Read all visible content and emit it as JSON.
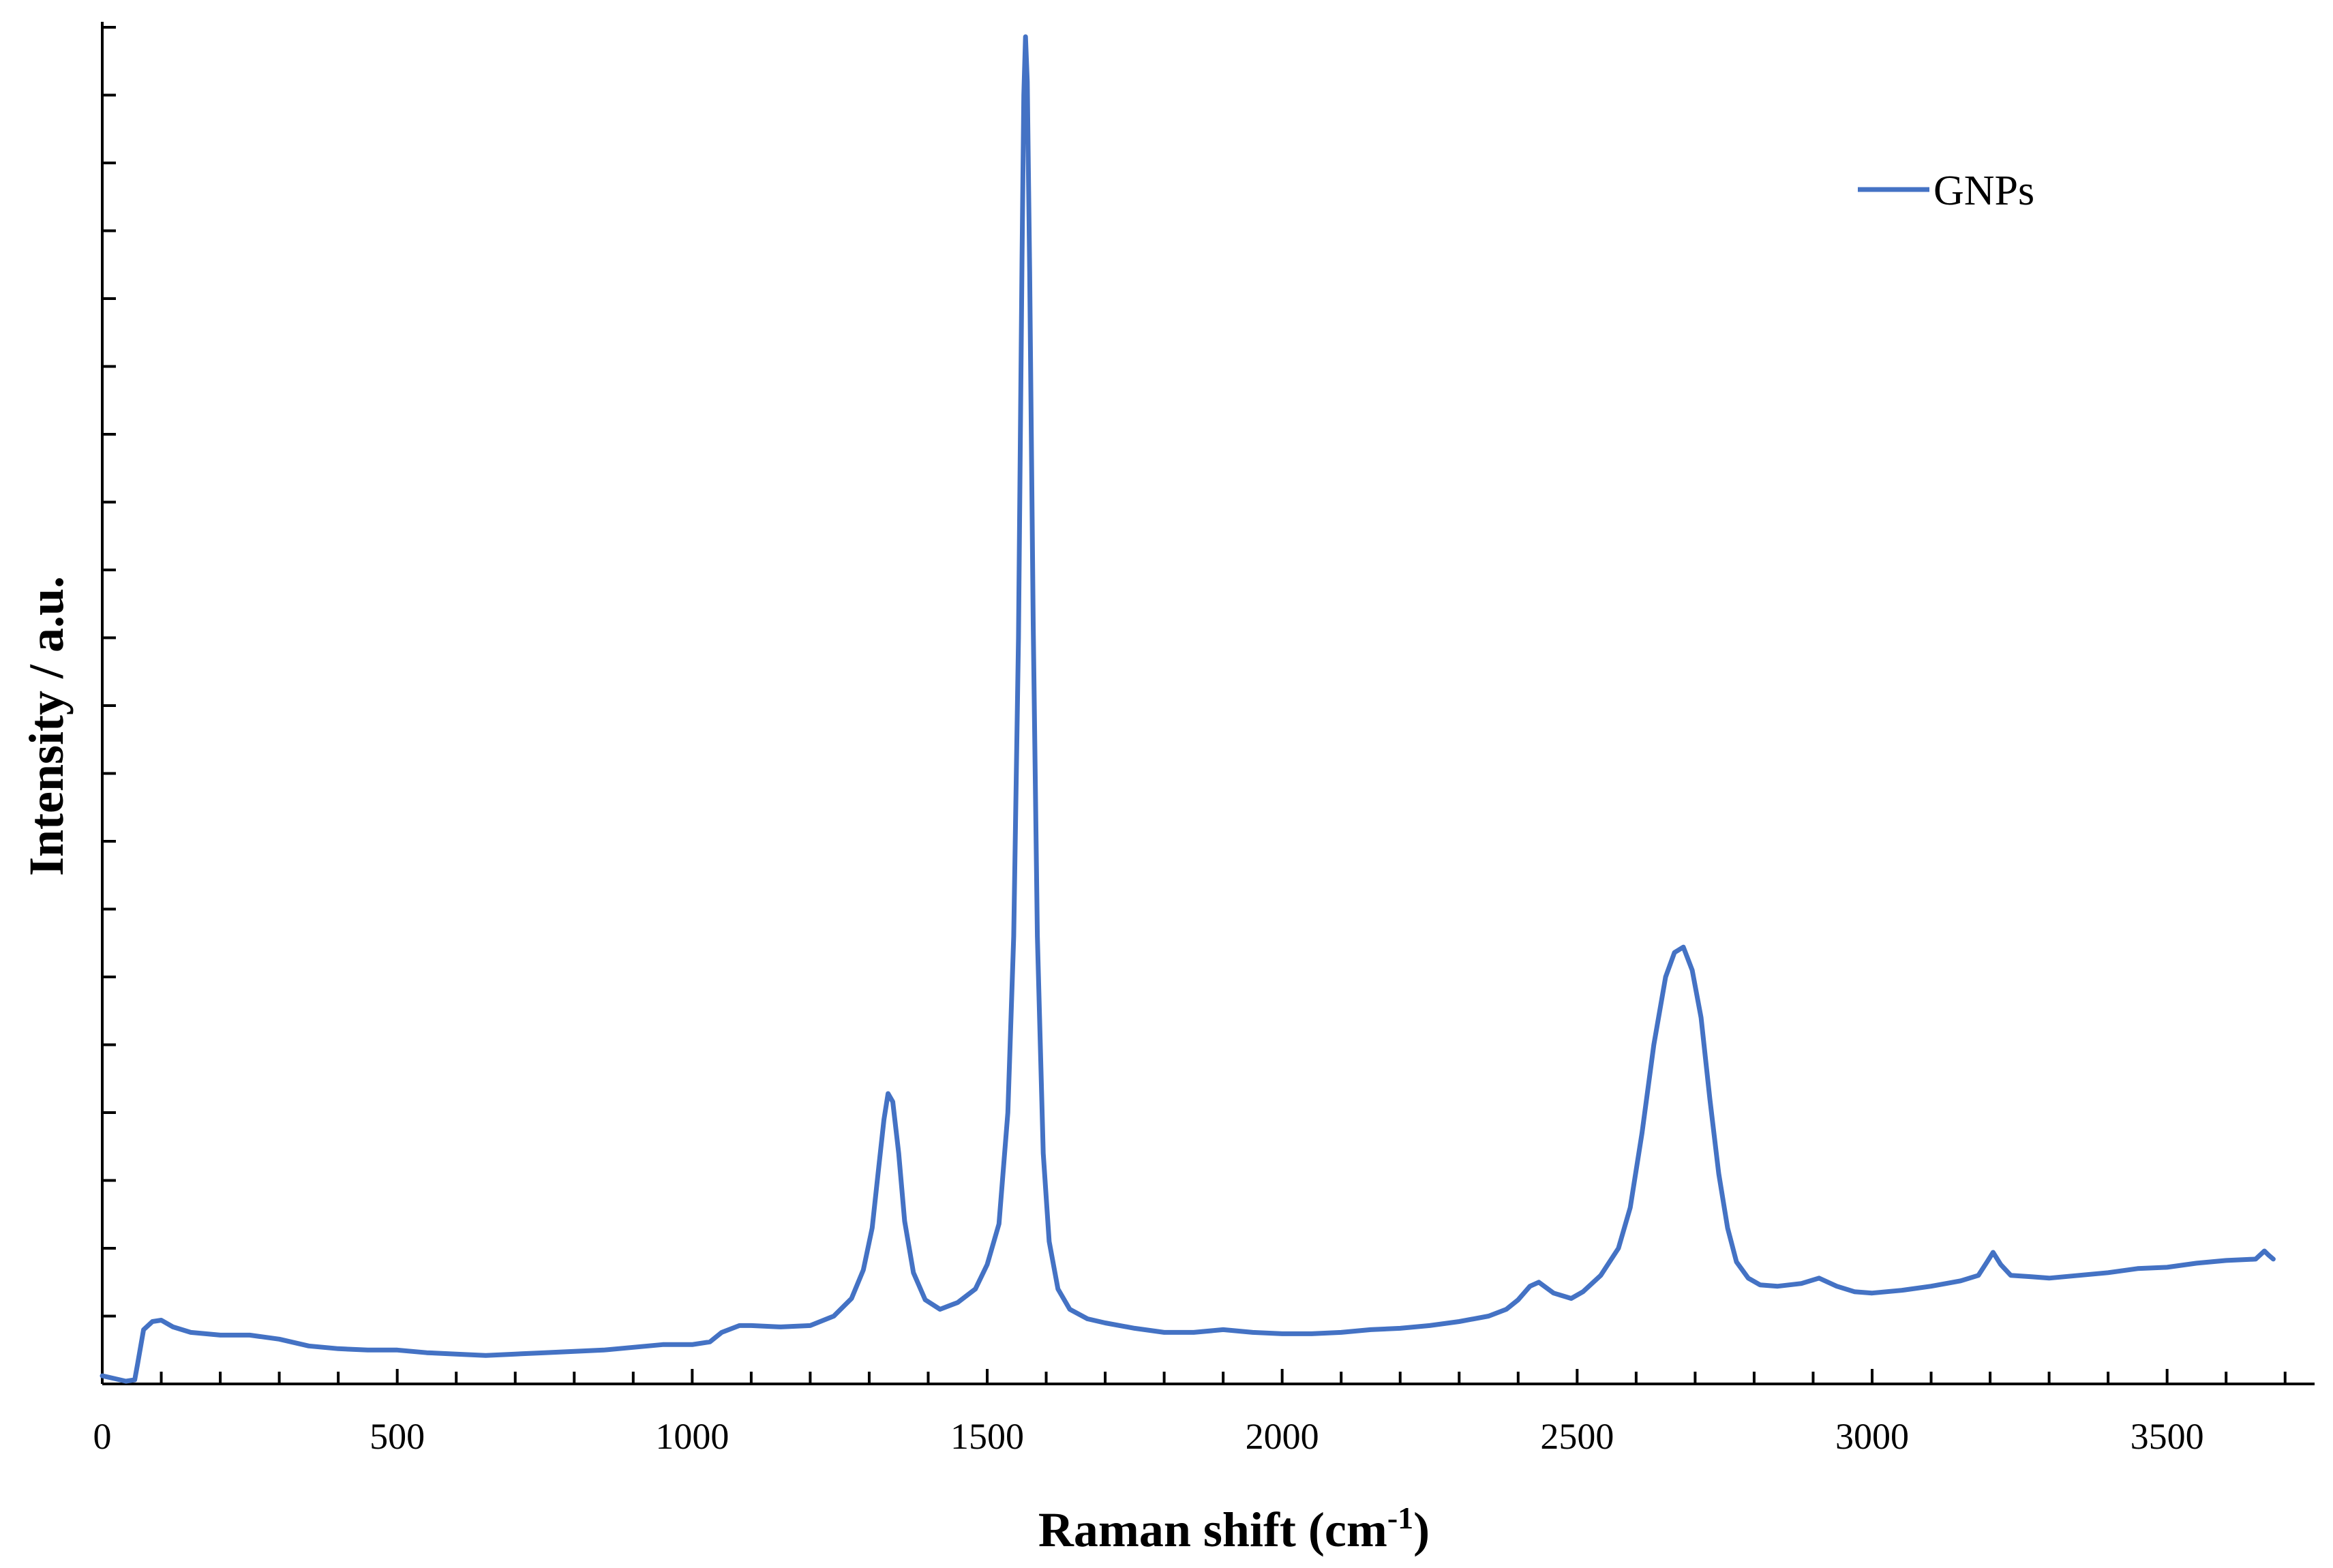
{
  "chart_data": {
    "type": "line",
    "title": "",
    "xlabel": "Raman shift (cm",
    "xlabel_superscript": "-1",
    "xlabel_suffix": ")",
    "ylabel": "Intensity / a.u.",
    "xlim": [
      0,
      3750
    ],
    "ylim": [
      0,
      1000
    ],
    "x_major_ticks": [
      0,
      500,
      1000,
      1500,
      2000,
      2500,
      3000,
      3500
    ],
    "x_tick_labels": [
      "0",
      "500",
      "1000",
      "1500",
      "2000",
      "2500",
      "3000",
      "3500"
    ],
    "x_minor_step": 100,
    "y_tick_step": 50,
    "y_tick_labels_shown": false,
    "grid": false,
    "legend_position": "top-right",
    "series_color": "#4472C4",
    "series": [
      {
        "name": "GNPs",
        "points": [
          [
            0,
            6
          ],
          [
            20,
            4
          ],
          [
            40,
            2
          ],
          [
            55,
            3
          ],
          [
            60,
            15
          ],
          [
            70,
            40
          ],
          [
            85,
            46
          ],
          [
            100,
            47
          ],
          [
            120,
            42
          ],
          [
            150,
            38
          ],
          [
            200,
            36
          ],
          [
            250,
            36
          ],
          [
            300,
            33
          ],
          [
            350,
            28
          ],
          [
            400,
            26
          ],
          [
            450,
            25
          ],
          [
            500,
            25
          ],
          [
            550,
            23
          ],
          [
            600,
            22
          ],
          [
            650,
            21
          ],
          [
            700,
            22
          ],
          [
            750,
            23
          ],
          [
            800,
            24
          ],
          [
            850,
            25
          ],
          [
            900,
            27
          ],
          [
            950,
            29
          ],
          [
            1000,
            29
          ],
          [
            1030,
            31
          ],
          [
            1050,
            38
          ],
          [
            1080,
            43
          ],
          [
            1100,
            43
          ],
          [
            1150,
            42
          ],
          [
            1200,
            43
          ],
          [
            1240,
            50
          ],
          [
            1270,
            63
          ],
          [
            1290,
            84
          ],
          [
            1305,
            115
          ],
          [
            1315,
            155
          ],
          [
            1325,
            195
          ],
          [
            1332,
            214
          ],
          [
            1340,
            208
          ],
          [
            1350,
            170
          ],
          [
            1360,
            120
          ],
          [
            1375,
            82
          ],
          [
            1395,
            62
          ],
          [
            1420,
            55
          ],
          [
            1450,
            60
          ],
          [
            1480,
            70
          ],
          [
            1500,
            88
          ],
          [
            1520,
            118
          ],
          [
            1535,
            200
          ],
          [
            1545,
            330
          ],
          [
            1553,
            550
          ],
          [
            1559,
            830
          ],
          [
            1562,
            950
          ],
          [
            1565,
            993
          ],
          [
            1568,
            960
          ],
          [
            1572,
            820
          ],
          [
            1578,
            560
          ],
          [
            1585,
            330
          ],
          [
            1595,
            170
          ],
          [
            1605,
            105
          ],
          [
            1620,
            70
          ],
          [
            1640,
            55
          ],
          [
            1670,
            48
          ],
          [
            1700,
            45
          ],
          [
            1750,
            41
          ],
          [
            1800,
            38
          ],
          [
            1850,
            38
          ],
          [
            1900,
            40
          ],
          [
            1950,
            38
          ],
          [
            2000,
            37
          ],
          [
            2050,
            37
          ],
          [
            2100,
            38
          ],
          [
            2150,
            40
          ],
          [
            2200,
            41
          ],
          [
            2250,
            43
          ],
          [
            2300,
            46
          ],
          [
            2350,
            50
          ],
          [
            2380,
            55
          ],
          [
            2400,
            62
          ],
          [
            2420,
            72
          ],
          [
            2435,
            75
          ],
          [
            2460,
            67
          ],
          [
            2490,
            63
          ],
          [
            2510,
            68
          ],
          [
            2540,
            80
          ],
          [
            2570,
            100
          ],
          [
            2590,
            130
          ],
          [
            2610,
            185
          ],
          [
            2630,
            250
          ],
          [
            2650,
            300
          ],
          [
            2665,
            318
          ],
          [
            2680,
            322
          ],
          [
            2695,
            305
          ],
          [
            2710,
            270
          ],
          [
            2725,
            210
          ],
          [
            2740,
            155
          ],
          [
            2755,
            115
          ],
          [
            2770,
            90
          ],
          [
            2790,
            78
          ],
          [
            2810,
            73
          ],
          [
            2840,
            72
          ],
          [
            2880,
            74
          ],
          [
            2910,
            78
          ],
          [
            2940,
            72
          ],
          [
            2970,
            68
          ],
          [
            3000,
            67
          ],
          [
            3050,
            69
          ],
          [
            3100,
            72
          ],
          [
            3150,
            76
          ],
          [
            3180,
            80
          ],
          [
            3195,
            90
          ],
          [
            3205,
            97
          ],
          [
            3218,
            88
          ],
          [
            3235,
            80
          ],
          [
            3270,
            79
          ],
          [
            3300,
            78
          ],
          [
            3350,
            80
          ],
          [
            3400,
            82
          ],
          [
            3450,
            85
          ],
          [
            3500,
            86
          ],
          [
            3550,
            89
          ],
          [
            3600,
            91
          ],
          [
            3650,
            92
          ],
          [
            3665,
            98
          ],
          [
            3672,
            95
          ],
          [
            3680,
            92
          ]
        ]
      }
    ]
  }
}
